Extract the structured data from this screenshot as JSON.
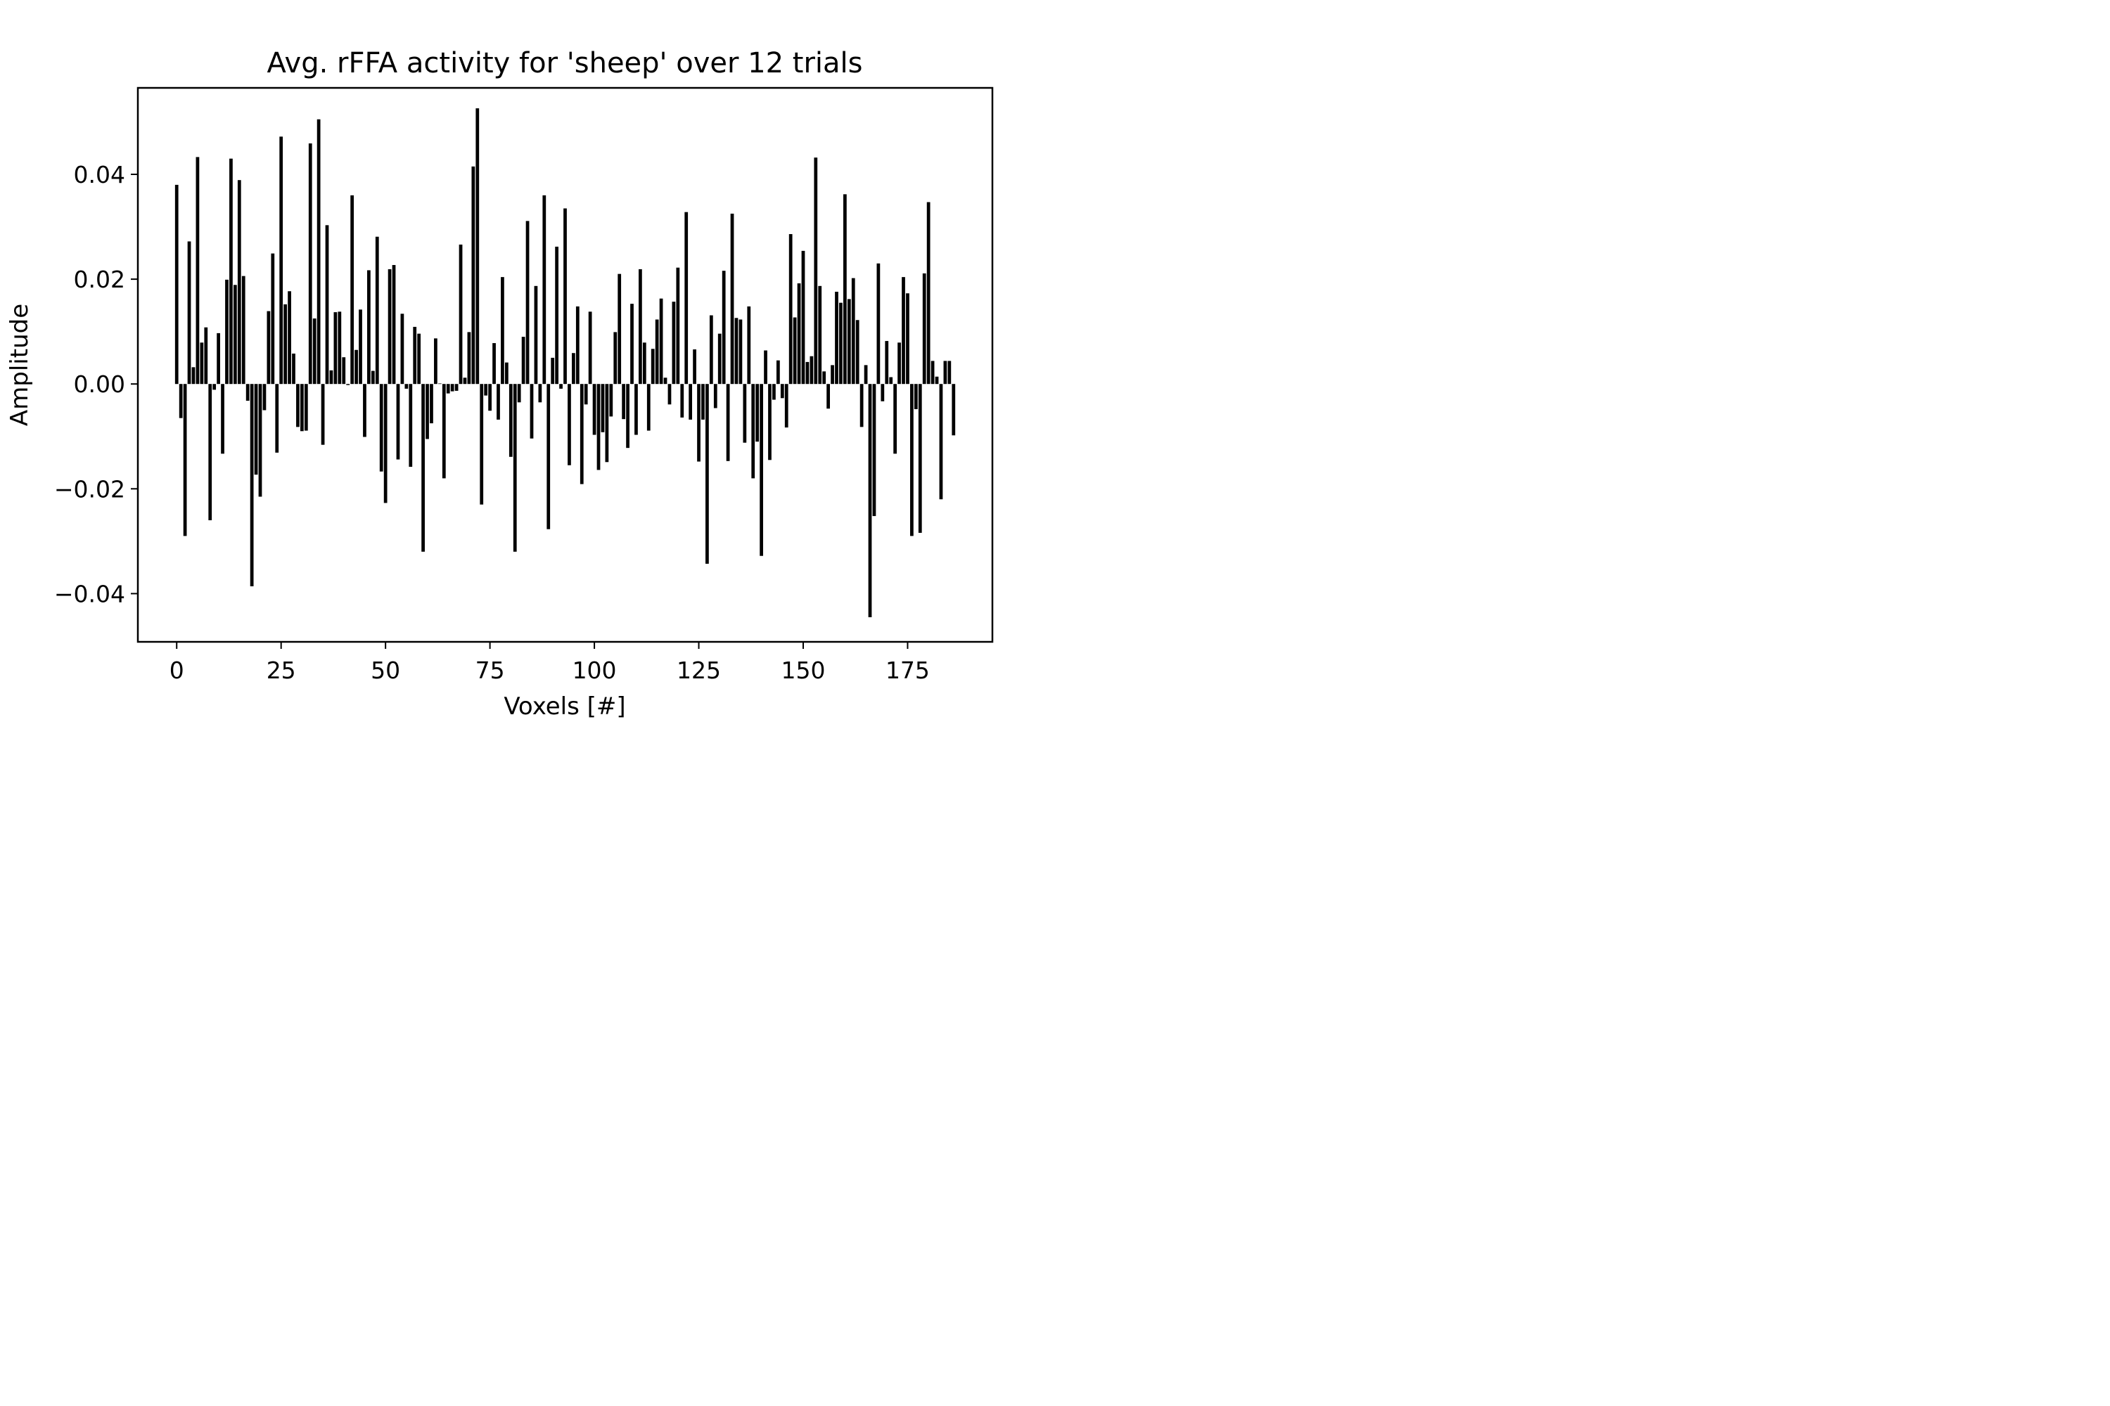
{
  "chart_data": {
    "type": "bar",
    "title": "Avg. rFFA activity for 'sheep' over 12 trials",
    "xlabel": "Voxels [#]",
    "ylabel": "Amplitude",
    "xlim": [
      -9.3,
      195.3
    ],
    "ylim": [
      -0.0492,
      0.0565
    ],
    "xticks": [
      {
        "value": 0,
        "label": "0"
      },
      {
        "value": 25,
        "label": "25"
      },
      {
        "value": 50,
        "label": "50"
      },
      {
        "value": 75,
        "label": "75"
      },
      {
        "value": 100,
        "label": "100"
      },
      {
        "value": 125,
        "label": "125"
      },
      {
        "value": 150,
        "label": "150"
      },
      {
        "value": 175,
        "label": "175"
      }
    ],
    "yticks": [
      {
        "value": 0.04,
        "label": "0.04"
      },
      {
        "value": 0.02,
        "label": "0.02"
      },
      {
        "value": 0.0,
        "label": "0.00"
      },
      {
        "value": -0.02,
        "label": "−0.02"
      },
      {
        "value": -0.04,
        "label": "−0.04"
      }
    ],
    "grid": false,
    "bar_color": "#000000",
    "x": [
      0,
      1,
      2,
      3,
      4,
      5,
      6,
      7,
      8,
      9,
      10,
      11,
      12,
      13,
      14,
      15,
      16,
      17,
      18,
      19,
      20,
      21,
      22,
      23,
      24,
      25,
      26,
      27,
      28,
      29,
      30,
      31,
      32,
      33,
      34,
      35,
      36,
      37,
      38,
      39,
      40,
      41,
      42,
      43,
      44,
      45,
      46,
      47,
      48,
      49,
      50,
      51,
      52,
      53,
      54,
      55,
      56,
      57,
      58,
      59,
      60,
      61,
      62,
      63,
      64,
      65,
      66,
      67,
      68,
      69,
      70,
      71,
      72,
      73,
      74,
      75,
      76,
      77,
      78,
      79,
      80,
      81,
      82,
      83,
      84,
      85,
      86,
      87,
      88,
      89,
      90,
      91,
      92,
      93,
      94,
      95,
      96,
      97,
      98,
      99,
      100,
      101,
      102,
      103,
      104,
      105,
      106,
      107,
      108,
      109,
      110,
      111,
      112,
      113,
      114,
      115,
      116,
      117,
      118,
      119,
      120,
      121,
      122,
      123,
      124,
      125,
      126,
      127,
      128,
      129,
      130,
      131,
      132,
      133,
      134,
      135,
      136,
      137,
      138,
      139,
      140,
      141,
      142,
      143,
      144,
      145,
      146,
      147,
      148,
      149,
      150,
      151,
      152,
      153,
      154,
      155,
      156,
      157,
      158,
      159,
      160,
      161,
      162,
      163,
      164,
      165,
      166,
      167,
      168,
      169,
      170,
      171,
      172,
      173,
      174,
      175,
      176,
      177,
      178,
      179,
      180,
      181,
      182,
      183,
      184,
      185,
      186
    ],
    "values": [
      0.038,
      -0.0065,
      -0.029,
      0.0272,
      0.0032,
      0.0433,
      0.0079,
      0.0108,
      -0.026,
      -0.0011,
      0.0097,
      -0.0133,
      0.0199,
      0.043,
      0.0189,
      0.0389,
      0.0206,
      -0.0032,
      -0.0386,
      -0.0173,
      -0.0215,
      -0.005,
      0.0139,
      0.0249,
      -0.0131,
      0.0472,
      0.0152,
      0.0177,
      0.0058,
      -0.0082,
      -0.009,
      -0.0089,
      0.0459,
      0.0125,
      0.0505,
      -0.0116,
      0.0303,
      0.0026,
      0.0137,
      0.0138,
      0.0051,
      -0.0002,
      0.036,
      0.0065,
      0.0142,
      -0.0101,
      0.0217,
      0.0025,
      0.0281,
      -0.0167,
      -0.0227,
      0.0219,
      0.0227,
      -0.0144,
      0.0134,
      -0.0009,
      -0.0158,
      0.0109,
      0.0096,
      -0.032,
      -0.0105,
      -0.0075,
      0.0087,
      0.0001,
      -0.018,
      -0.0018,
      -0.0014,
      -0.0013,
      0.0266,
      0.0012,
      0.0099,
      0.0415,
      0.0526,
      -0.023,
      -0.0022,
      -0.0051,
      0.0078,
      -0.0068,
      0.0204,
      0.0041,
      -0.0139,
      -0.032,
      -0.0035,
      0.009,
      0.0311,
      -0.0104,
      0.0187,
      -0.0035,
      0.036,
      -0.0277,
      0.005,
      0.0262,
      -0.0009,
      0.0335,
      -0.0155,
      0.0059,
      0.0148,
      -0.0191,
      -0.0039,
      0.0138,
      -0.0097,
      -0.0164,
      -0.0092,
      -0.0149,
      -0.0062,
      0.0099,
      0.021,
      -0.0067,
      -0.0122,
      0.0153,
      -0.0097,
      0.0219,
      0.0079,
      -0.0089,
      0.0067,
      0.0123,
      0.0163,
      0.0012,
      -0.0039,
      0.0157,
      0.0222,
      -0.0064,
      0.0328,
      -0.0068,
      0.0066,
      -0.0148,
      -0.0068,
      -0.0343,
      0.0131,
      -0.0046,
      0.0096,
      0.0216,
      -0.0147,
      0.0325,
      0.0126,
      0.0123,
      -0.0112,
      0.0148,
      -0.018,
      -0.011,
      -0.0328,
      0.0064,
      -0.0145,
      -0.003,
      0.0045,
      -0.0027,
      -0.0083,
      0.0286,
      0.0127,
      0.0192,
      0.0254,
      0.0042,
      0.0053,
      0.0432,
      0.0187,
      0.0024,
      -0.0047,
      0.0036,
      0.0176,
      0.0155,
      0.0362,
      0.0162,
      0.0202,
      0.0122,
      -0.0082,
      0.0036,
      -0.0445,
      -0.0252,
      0.023,
      -0.0033,
      0.0082,
      0.0013,
      -0.0133,
      0.0079,
      0.0204,
      0.0173,
      -0.029,
      -0.0048,
      -0.0284,
      0.0211,
      0.0347,
      0.0044,
      0.0014,
      -0.022,
      0.0044,
      0.0044,
      -0.0098
    ]
  }
}
